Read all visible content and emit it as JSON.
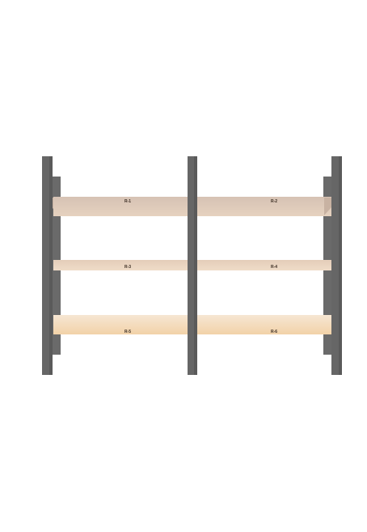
{
  "colors": {
    "post": "#656565",
    "post_dark": "#4e4e4e",
    "shelf_top_face": "#d7c4b7",
    "shelf_front_top": "#eedac6",
    "shelf_front_bottom": "#f4d7b3",
    "shelf_side": "#c9ae9c"
  },
  "shelves": [
    {
      "label": "R-1"
    },
    {
      "label": "R-2"
    },
    {
      "label": "R-3"
    },
    {
      "label": "R-4"
    },
    {
      "label": "R-5"
    },
    {
      "label": "R-6"
    }
  ]
}
